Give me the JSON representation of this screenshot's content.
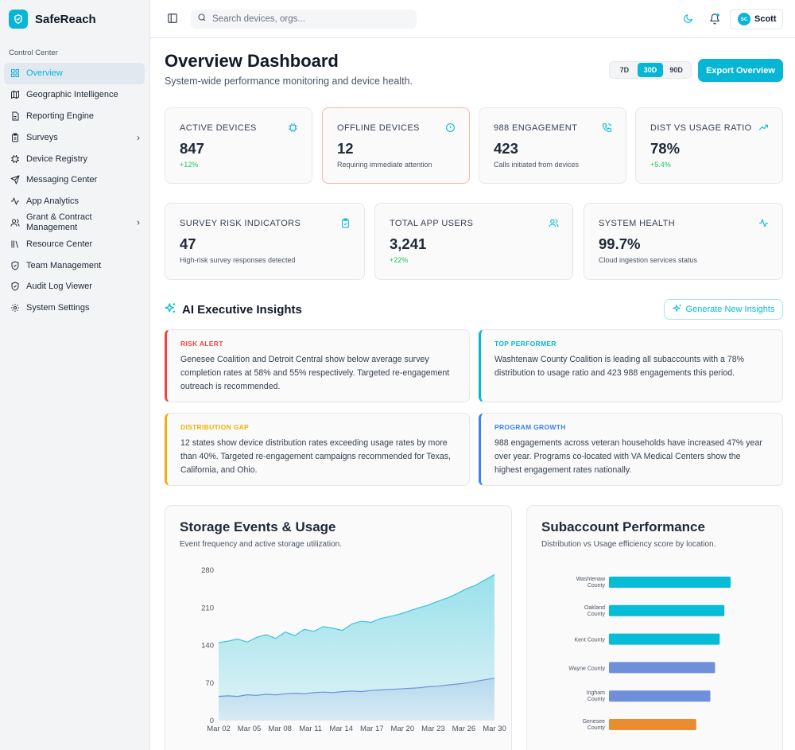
{
  "app": {
    "name": "SafeReach"
  },
  "colors": {
    "accent": "#06b6d4",
    "risk": "#ef4444",
    "gap": "#eab308",
    "growth": "#3b82f6",
    "positive": "#22c55e"
  },
  "sidebar": {
    "section_label": "Control Center",
    "items": [
      {
        "label": "Overview",
        "icon": "grid-icon",
        "active": true
      },
      {
        "label": "Geographic Intelligence",
        "icon": "map-icon"
      },
      {
        "label": "Reporting Engine",
        "icon": "report-icon"
      },
      {
        "label": "Surveys",
        "icon": "clipboard-icon",
        "chevron": true
      },
      {
        "label": "Device Registry",
        "icon": "chip-icon"
      },
      {
        "label": "Messaging Center",
        "icon": "send-icon"
      },
      {
        "label": "App Analytics",
        "icon": "activity-icon"
      },
      {
        "label": "Grant & Contract Management",
        "icon": "users-icon",
        "chevron": true
      },
      {
        "label": "Resource Center",
        "icon": "library-icon"
      },
      {
        "label": "Team Management",
        "icon": "shield-icon"
      },
      {
        "label": "Audit Log Viewer",
        "icon": "shield-check-icon"
      },
      {
        "label": "System Settings",
        "icon": "gear-icon"
      }
    ]
  },
  "topbar": {
    "search_placeholder": "Search devices, orgs...",
    "user": {
      "initials": "SC",
      "name": "Scott"
    }
  },
  "header": {
    "title": "Overview Dashboard",
    "subtitle": "System-wide performance monitoring and device health.",
    "ranges": [
      "7D",
      "30D",
      "90D"
    ],
    "selected_range": "30D",
    "export_label": "Export Overview"
  },
  "stats_row1": [
    {
      "label": "ACTIVE DEVICES",
      "value": "847",
      "sub": "+12%",
      "positive": true,
      "icon": "chip-icon"
    },
    {
      "label": "OFFLINE DEVICES",
      "value": "12",
      "sub": "Requiring immediate attention",
      "alert": true,
      "icon": "info-icon"
    },
    {
      "label": "988 ENGAGEMENT",
      "value": "423",
      "sub": "Calls initiated from devices",
      "icon": "phone-icon"
    },
    {
      "label": "DIST VS USAGE RATIO",
      "value": "78%",
      "sub": "+5.4%",
      "positive": true,
      "icon": "trending-up-icon"
    }
  ],
  "stats_row2": [
    {
      "label": "SURVEY RISK INDICATORS",
      "value": "47",
      "sub": "High-risk survey responses detected",
      "icon": "clipboard-check-icon"
    },
    {
      "label": "TOTAL APP USERS",
      "value": "3,241",
      "sub": "+22%",
      "positive": true,
      "icon": "users-icon"
    },
    {
      "label": "SYSTEM HEALTH",
      "value": "99.7%",
      "sub": "Cloud ingestion services status",
      "icon": "pulse-icon"
    }
  ],
  "insights": {
    "title": "AI Executive Insights",
    "generate_label": "Generate New Insights",
    "cards": [
      {
        "title": "RISK ALERT",
        "text": "Genesee Coalition and Detroit Central show below average survey completion rates at 58% and 55% respectively. Targeted re-engagement outreach is recommended."
      },
      {
        "title": "TOP PERFORMER",
        "text": "Washtenaw County Coalition is leading all subaccounts with a 78% distribution to usage ratio and 423 988 engagements this period."
      },
      {
        "title": "DISTRIBUTION GAP",
        "text": "12 states show device distribution rates exceeding usage rates by more than 40%. Targeted re-engagement campaigns recommended for Texas, California, and Ohio."
      },
      {
        "title": "PROGRAM GROWTH",
        "text": "988 engagements across veteran households have increased 47% year over year. Programs co-located with VA Medical Centers show the highest engagement rates nationally."
      }
    ]
  },
  "storage_chart": {
    "title": "Storage Events & Usage",
    "subtitle": "Event frequency and active storage utilization."
  },
  "subaccount_chart": {
    "title": "Subaccount Performance",
    "subtitle": "Distribution vs Usage efficiency score by location."
  },
  "chart_data": [
    {
      "type": "area",
      "title": "Storage Events & Usage",
      "ylim": [
        0,
        280
      ],
      "yticks": [
        0,
        70,
        140,
        210,
        280
      ],
      "xticks": [
        "Mar 02",
        "Mar 05",
        "Mar 08",
        "Mar 11",
        "Mar 14",
        "Mar 17",
        "Mar 20",
        "Mar 23",
        "Mar 26",
        "Mar 30"
      ],
      "x": [
        "Mar 01",
        "Mar 02",
        "Mar 03",
        "Mar 04",
        "Mar 05",
        "Mar 06",
        "Mar 07",
        "Mar 08",
        "Mar 09",
        "Mar 10",
        "Mar 11",
        "Mar 12",
        "Mar 13",
        "Mar 14",
        "Mar 15",
        "Mar 16",
        "Mar 17",
        "Mar 18",
        "Mar 19",
        "Mar 20",
        "Mar 21",
        "Mar 22",
        "Mar 23",
        "Mar 24",
        "Mar 25",
        "Mar 26",
        "Mar 27",
        "Mar 28",
        "Mar 29",
        "Mar 30"
      ],
      "series": [
        {
          "values": [
            145,
            148,
            152,
            146,
            155,
            160,
            153,
            165,
            158,
            170,
            166,
            175,
            172,
            168,
            180,
            185,
            183,
            190,
            194,
            198,
            204,
            210,
            215,
            222,
            228,
            236,
            245,
            252,
            262,
            272
          ]
        },
        {
          "values": [
            45,
            46,
            45,
            48,
            47,
            49,
            48,
            50,
            51,
            50,
            52,
            53,
            52,
            54,
            55,
            54,
            56,
            57,
            58,
            59,
            60,
            61,
            63,
            64,
            66,
            68,
            70,
            73,
            76,
            79
          ]
        }
      ]
    },
    {
      "type": "bar",
      "title": "Subaccount Performance",
      "orientation": "horizontal",
      "categories": [
        "Washtenaw County",
        "Oakland County",
        "Kent County",
        "Wayne County",
        "Ingham County",
        "Genesee County"
      ],
      "values": [
        78,
        74,
        71,
        68,
        65,
        56
      ],
      "colors": [
        "#06bcd6",
        "#06bcd6",
        "#06bcd6",
        "#6f8fdb",
        "#6f8fdb",
        "#ea8c30"
      ]
    }
  ]
}
